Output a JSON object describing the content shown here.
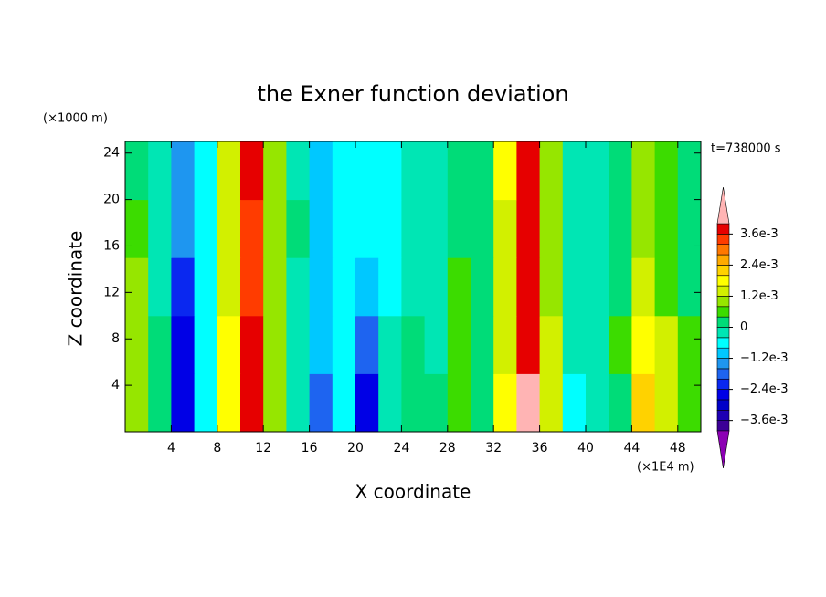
{
  "chart_data": {
    "type": "contour",
    "title": "the Exner function deviation",
    "xlabel": "X coordinate",
    "ylabel": "Z coordinate",
    "x_unit": "(×1E4 m)",
    "y_unit": "(×1000 m)",
    "annotation": "t=738000 s",
    "x": [
      1,
      3,
      5,
      7,
      9,
      11,
      13,
      15,
      17,
      19,
      21,
      23,
      25,
      27,
      29,
      31,
      33,
      35,
      37,
      39,
      41,
      43,
      45,
      47,
      49
    ],
    "y": [
      2.5,
      7.5,
      12.5,
      17.5,
      22.5
    ],
    "z": [
      [
        0.001,
        0.0002,
        -0.0026,
        -0.0006,
        0.0018,
        0.0038,
        0.0008,
        -0.0004,
        -0.0018,
        -0.0006,
        -0.0026,
        -0.0002,
        0.0002,
        0,
        0.0006,
        0.0002,
        0.0018,
        0.0042,
        0.0012,
        -0.0006,
        -0.0004,
        0.0002,
        0.0022,
        0.0014,
        0.0006
      ],
      [
        0.0009,
        0,
        -0.0026,
        -0.0006,
        0.0016,
        0.0036,
        0.001,
        -0.0004,
        -0.001,
        -0.0006,
        -0.0018,
        -0.0004,
        0,
        -0.0002,
        0.0006,
        0.0002,
        0.0014,
        0.0038,
        0.0012,
        -0.0004,
        -0.0004,
        0.0004,
        0.0018,
        0.0012,
        0.0004
      ],
      [
        0.0008,
        -0.0002,
        -0.0022,
        -0.0006,
        0.0014,
        0.0034,
        0.001,
        -0.0002,
        -0.001,
        -0.0006,
        -0.001,
        -0.0006,
        -0.0002,
        -0.0002,
        0.0006,
        0.0003,
        0.0012,
        0.0036,
        0.001,
        -0.0004,
        -0.0003,
        0.0002,
        0.0012,
        0.0006,
        0.0002
      ],
      [
        0.0005,
        -0.0004,
        -0.0016,
        -0.0006,
        0.0012,
        0.0034,
        0.001,
        0,
        -0.001,
        -0.0006,
        -0.0006,
        -0.0006,
        -0.0003,
        -0.0003,
        0.0002,
        0.0002,
        0.0014,
        0.0036,
        0.001,
        -0.0004,
        -0.0004,
        0.0002,
        0.001,
        0.0006,
        0.0002
      ],
      [
        0.0002,
        -0.0004,
        -0.0014,
        -0.0006,
        0.0014,
        0.0036,
        0.0008,
        -0.0002,
        -0.0009,
        -0.0006,
        -0.0006,
        -0.0008,
        -0.0002,
        -0.0003,
        0,
        0.0002,
        0.0016,
        0.0038,
        0.001,
        -0.0004,
        -0.0003,
        0.0002,
        0.0008,
        0.0004,
        0.0002
      ]
    ],
    "xlim": [
      0,
      50
    ],
    "xticks": [
      4,
      8,
      12,
      16,
      20,
      24,
      28,
      32,
      36,
      40,
      44,
      48
    ],
    "ylim": [
      0,
      25
    ],
    "yticks": [
      4,
      8,
      12,
      16,
      20,
      24
    ],
    "colorbar": {
      "levels": [
        -0.004,
        -0.0036,
        -0.0032,
        -0.0028,
        -0.0024,
        -0.002,
        -0.0016,
        -0.0012,
        -0.0008,
        -0.0004,
        0,
        0.0004,
        0.0008,
        0.0012,
        0.0016,
        0.002,
        0.0024,
        0.0028,
        0.0032,
        0.0036,
        0.004
      ],
      "colors": [
        "#8c00b4",
        "#3c0096",
        "#1e00b4",
        "#0000c8",
        "#0000e6",
        "#0a28f0",
        "#1e64f0",
        "#1e96f0",
        "#00c8ff",
        "#00ffff",
        "#00e6b4",
        "#00dc78",
        "#3cdc00",
        "#96e600",
        "#d2f000",
        "#ffff00",
        "#ffd200",
        "#ffaa00",
        "#ff7800",
        "#ff3c00",
        "#e60000",
        "#ffb4b4"
      ],
      "ticks": [
        {
          "value": 0.0036,
          "label": "3.6e-3"
        },
        {
          "value": 0.0024,
          "label": "2.4e-3"
        },
        {
          "value": 0.0012,
          "label": "1.2e-3"
        },
        0,
        {
          "value": -0.0012,
          "label": "−1.2e-3"
        },
        {
          "value": -0.0024,
          "label": "−2.4e-3"
        },
        {
          "value": -0.0036,
          "label": "−3.6e-3"
        }
      ]
    }
  }
}
